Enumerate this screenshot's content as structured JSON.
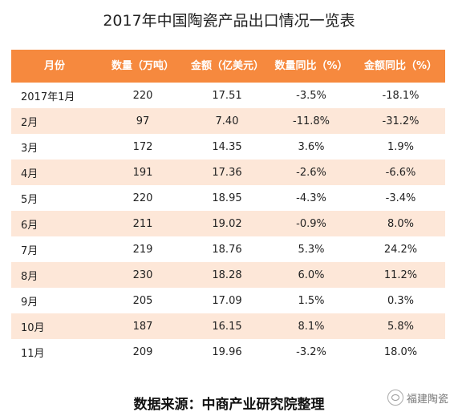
{
  "title": "2017年中国陶瓷产品出口情况一览表",
  "table": {
    "headers": [
      "月份",
      "数量（万吨）",
      "金额（亿美元）",
      "数量同比（%）",
      "金额同比（%）"
    ],
    "rows": [
      [
        "2017年1月",
        "220",
        "17.51",
        "-3.5%",
        "-18.1%"
      ],
      [
        "2月",
        "97",
        "7.40",
        "-11.8%",
        "-31.2%"
      ],
      [
        "3月",
        "172",
        "14.35",
        "3.6%",
        "1.9%"
      ],
      [
        "4月",
        "191",
        "17.36",
        "-2.6%",
        "-6.6%"
      ],
      [
        "5月",
        "220",
        "18.95",
        "-4.3%",
        "-3.4%"
      ],
      [
        "6月",
        "211",
        "19.02",
        "-0.9%",
        "8.0%"
      ],
      [
        "7月",
        "219",
        "18.76",
        "5.3%",
        "24.2%"
      ],
      [
        "8月",
        "230",
        "18.28",
        "6.0%",
        "11.2%"
      ],
      [
        "9月",
        "205",
        "17.09",
        "1.5%",
        "0.3%"
      ],
      [
        "10月",
        "187",
        "16.15",
        "8.1%",
        "5.8%"
      ],
      [
        "11月",
        "209",
        "19.96",
        "-3.2%",
        "18.0%"
      ]
    ]
  },
  "source": "数据来源：中商产业研究院整理",
  "brand": {
    "label": "福建陶瓷",
    "icon": "wechat-icon"
  },
  "colors": {
    "header": "#f6893e",
    "stripe": "#fde7d8"
  }
}
